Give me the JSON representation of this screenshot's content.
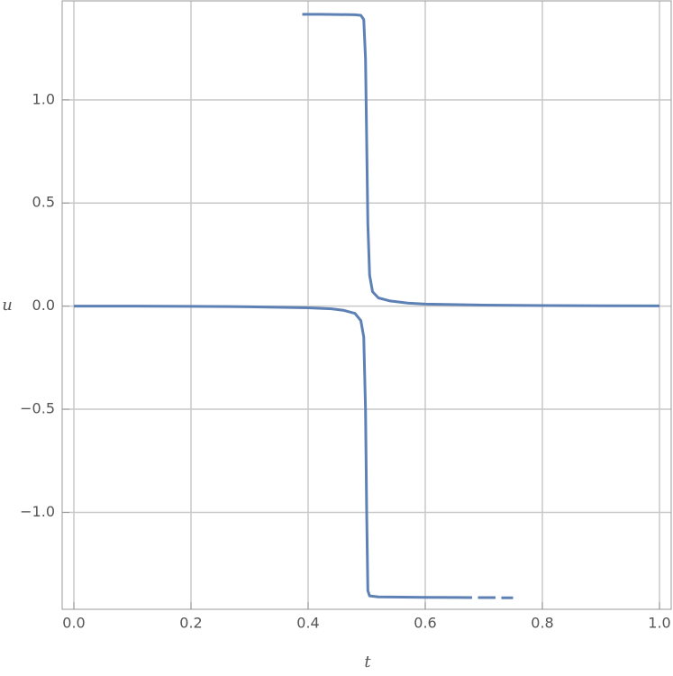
{
  "chart_data": {
    "type": "line",
    "x_label": "t",
    "y_label": "u",
    "xlim": [
      -0.02,
      1.02
    ],
    "ylim": [
      -1.47,
      1.48
    ],
    "xticks": [
      {
        "value": 0,
        "label": "0.0"
      },
      0.2,
      0.4,
      0.6,
      0.8,
      {
        "value": 1,
        "label": "1.0"
      }
    ],
    "yticks": [
      {
        "value": -1,
        "label": "−1.0"
      },
      {
        "value": -0.5,
        "label": "−0.5"
      },
      {
        "value": 0,
        "label": "0.0"
      },
      0.5,
      {
        "value": 1,
        "label": "1.0"
      }
    ],
    "grid": true,
    "series": [
      {
        "color": "#5e81b5",
        "x": [
          0.39,
          0.42,
          0.45,
          0.48,
          0.49,
          0.495,
          0.498,
          0.5,
          0.502,
          0.505,
          0.51,
          0.52,
          0.54,
          0.57,
          0.6,
          0.7,
          0.8,
          0.9,
          1.0
        ],
        "values": [
          1.415,
          1.415,
          1.414,
          1.413,
          1.41,
          1.39,
          1.2,
          0.8,
          0.4,
          0.15,
          0.07,
          0.04,
          0.025,
          0.015,
          0.01,
          0.005,
          0.003,
          0.002,
          0.001
        ]
      },
      {
        "color": "#5e81b5",
        "x": [
          0,
          0.1,
          0.2,
          0.3,
          0.4,
          0.44,
          0.46,
          0.48,
          0.49,
          0.495,
          0.498,
          0.5,
          0.502,
          0.505,
          0.52,
          0.6,
          0.68,
          0.685,
          0.69,
          0.72,
          0.725,
          0.73,
          0.75
        ],
        "values": [
          0,
          0,
          -0.001,
          -0.003,
          -0.008,
          -0.013,
          -0.02,
          -0.035,
          -0.07,
          -0.15,
          -0.5,
          -1.0,
          -1.38,
          -1.405,
          -1.41,
          -1.412,
          -1.413,
          null,
          -1.413,
          -1.413,
          null,
          -1.414,
          -1.414
        ]
      }
    ]
  }
}
